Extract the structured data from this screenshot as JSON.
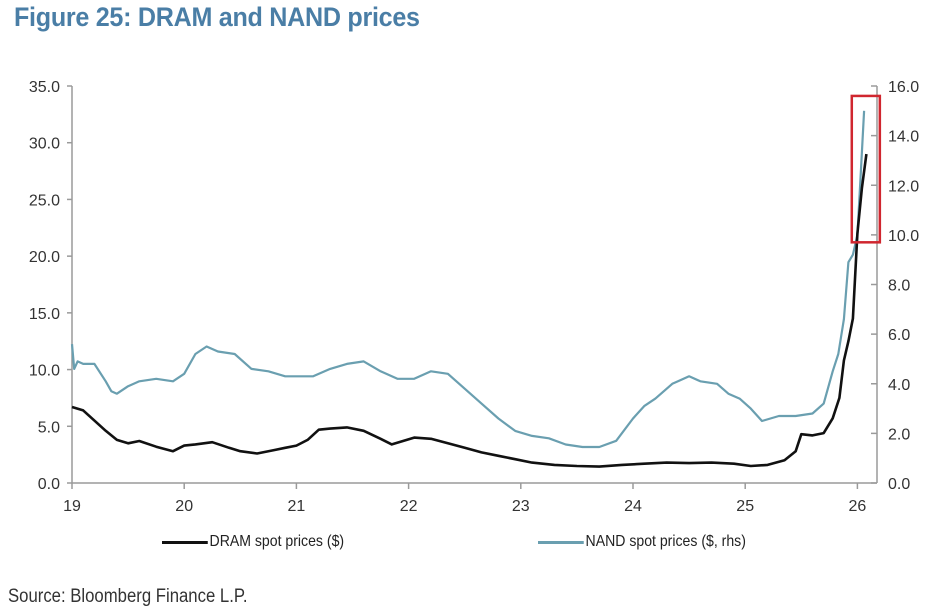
{
  "title": "Figure 25: DRAM and NAND prices",
  "source": "Source: Bloomberg Finance L.P.",
  "chart_data": {
    "type": "line",
    "title": "Figure 25: DRAM and NAND prices",
    "xlabel": "",
    "ylabel": "",
    "x_tick_labels": [
      "19",
      "20",
      "21",
      "22",
      "23",
      "24",
      "25",
      "26"
    ],
    "x_range": [
      19,
      26.1
    ],
    "left_axis": {
      "ylim": [
        0,
        35
      ],
      "ticks": [
        "0.0",
        "5.0",
        "10.0",
        "15.0",
        "20.0",
        "25.0",
        "30.0",
        "35.0"
      ]
    },
    "right_axis": {
      "ylim": [
        0,
        16
      ],
      "ticks": [
        "0.0",
        "2.0",
        "4.0",
        "6.0",
        "8.0",
        "10.0",
        "12.0",
        "14.0",
        "16.0"
      ]
    },
    "grid": false,
    "legend_position": "bottom",
    "highlight_box": {
      "x_range": [
        25.95,
        26.2
      ],
      "right_axis_range": [
        9.7,
        15.6
      ],
      "color": "#d0262f"
    },
    "series": [
      {
        "name": "DRAM spot prices ($)",
        "axis": "left",
        "color": "#111111",
        "x": [
          19.0,
          19.1,
          19.2,
          19.3,
          19.4,
          19.5,
          19.6,
          19.75,
          19.9,
          20.0,
          20.1,
          20.25,
          20.4,
          20.5,
          20.65,
          20.8,
          20.9,
          21.0,
          21.1,
          21.2,
          21.3,
          21.45,
          21.6,
          21.75,
          21.85,
          21.95,
          22.05,
          22.2,
          22.35,
          22.5,
          22.65,
          22.8,
          22.95,
          23.1,
          23.3,
          23.5,
          23.7,
          23.9,
          24.1,
          24.3,
          24.5,
          24.7,
          24.9,
          25.05,
          25.2,
          25.35,
          25.45,
          25.5,
          25.6,
          25.7,
          25.78,
          25.84,
          25.88,
          25.92,
          25.96,
          26.0,
          26.04,
          26.08
        ],
        "values": [
          6.7,
          6.4,
          5.5,
          4.6,
          3.8,
          3.5,
          3.7,
          3.2,
          2.8,
          3.3,
          3.4,
          3.6,
          3.1,
          2.8,
          2.6,
          2.9,
          3.1,
          3.3,
          3.8,
          4.7,
          4.8,
          4.9,
          4.6,
          3.9,
          3.4,
          3.7,
          4.0,
          3.9,
          3.5,
          3.1,
          2.7,
          2.4,
          2.1,
          1.8,
          1.6,
          1.5,
          1.45,
          1.6,
          1.7,
          1.8,
          1.75,
          1.8,
          1.7,
          1.5,
          1.6,
          2.0,
          2.8,
          4.3,
          4.2,
          4.4,
          5.7,
          7.5,
          10.8,
          12.5,
          14.5,
          22.0,
          26.0,
          29.0
        ]
      },
      {
        "name": "NAND spot prices ($, rhs)",
        "axis": "right",
        "color": "#6a9fb0",
        "x": [
          19.0,
          19.02,
          19.05,
          19.1,
          19.2,
          19.3,
          19.35,
          19.4,
          19.5,
          19.6,
          19.75,
          19.9,
          20.0,
          20.1,
          20.2,
          20.3,
          20.45,
          20.6,
          20.75,
          20.9,
          21.0,
          21.15,
          21.3,
          21.45,
          21.6,
          21.75,
          21.9,
          22.05,
          22.2,
          22.35,
          22.5,
          22.65,
          22.8,
          22.95,
          23.1,
          23.25,
          23.4,
          23.55,
          23.7,
          23.85,
          24.0,
          24.1,
          24.2,
          24.35,
          24.5,
          24.6,
          24.75,
          24.85,
          24.95,
          25.05,
          25.15,
          25.3,
          25.45,
          25.6,
          25.7,
          25.78,
          25.83,
          25.88,
          25.92,
          25.96,
          26.0,
          26.03,
          26.06
        ],
        "values": [
          5.6,
          4.6,
          4.9,
          4.8,
          4.8,
          4.1,
          3.7,
          3.6,
          3.9,
          4.1,
          4.2,
          4.1,
          4.4,
          5.2,
          5.5,
          5.3,
          5.2,
          4.6,
          4.5,
          4.3,
          4.3,
          4.3,
          4.6,
          4.8,
          4.9,
          4.5,
          4.2,
          4.2,
          4.5,
          4.4,
          3.8,
          3.2,
          2.6,
          2.1,
          1.9,
          1.8,
          1.55,
          1.45,
          1.45,
          1.7,
          2.6,
          3.1,
          3.4,
          4.0,
          4.3,
          4.1,
          4.0,
          3.6,
          3.4,
          3.0,
          2.5,
          2.7,
          2.7,
          2.8,
          3.2,
          4.5,
          5.2,
          6.6,
          8.9,
          9.2,
          10.0,
          12.5,
          15.0
        ]
      }
    ]
  }
}
